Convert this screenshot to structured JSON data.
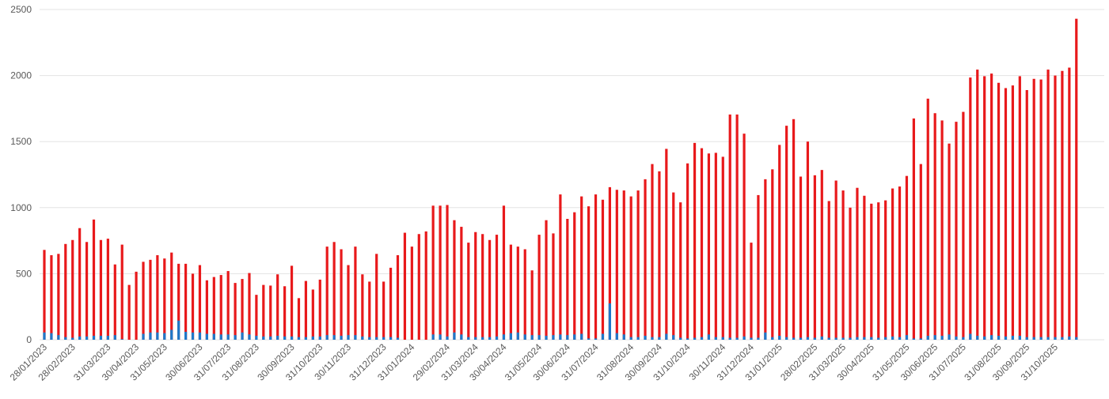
{
  "chart_data": {
    "type": "bar",
    "overlap": true,
    "categories": [
      "28/01/2023",
      null,
      null,
      null,
      "28/02/2023",
      null,
      null,
      null,
      null,
      "31/03/2023",
      null,
      null,
      null,
      "30/04/2023",
      null,
      null,
      null,
      "31/05/2023",
      null,
      null,
      null,
      null,
      "30/06/2023",
      null,
      null,
      null,
      "31/07/2023",
      null,
      null,
      null,
      "31/08/2023",
      null,
      null,
      null,
      null,
      "30/09/2023",
      null,
      null,
      null,
      "31/10/2023",
      null,
      null,
      null,
      "30/11/2023",
      null,
      null,
      null,
      null,
      "31/12/2023",
      null,
      null,
      null,
      "31/01/2024",
      null,
      null,
      null,
      null,
      "29/02/2024",
      null,
      null,
      null,
      "31/03/2024",
      null,
      null,
      null,
      "30/04/2024",
      null,
      null,
      null,
      null,
      "31/05/2024",
      null,
      null,
      null,
      "30/06/2024",
      null,
      null,
      null,
      "31/07/2024",
      null,
      null,
      null,
      null,
      "31/08/2024",
      null,
      null,
      null,
      "30/09/2024",
      null,
      null,
      null,
      "31/10/2024",
      null,
      null,
      null,
      null,
      "30/11/2024",
      null,
      null,
      null,
      "31/12/2024",
      null,
      null,
      null,
      "31/01/2025",
      null,
      null,
      null,
      null,
      "28/02/2025",
      null,
      null,
      null,
      "31/03/2025",
      null,
      null,
      null,
      "30/04/2025",
      null,
      null,
      null,
      null,
      "31/05/2025",
      null,
      null,
      null,
      "30/06/2025",
      null,
      null,
      null,
      "31/07/2025",
      null,
      null,
      null,
      null,
      "31/08/2025",
      null,
      null,
      null,
      "30/09/2025",
      null,
      null,
      null,
      "31/10/2025",
      null,
      null,
      null
    ],
    "series": [
      {
        "color": "#e8191b",
        "values": [
          680,
          640,
          650,
          725,
          755,
          845,
          740,
          910,
          755,
          765,
          570,
          720,
          415,
          515,
          590,
          605,
          640,
          615,
          660,
          575,
          575,
          500,
          565,
          450,
          475,
          490,
          520,
          430,
          460,
          505,
          340,
          415,
          410,
          495,
          405,
          560,
          315,
          445,
          380,
          455,
          705,
          740,
          685,
          565,
          705,
          495,
          440,
          650,
          440,
          545,
          640,
          810,
          705,
          800,
          820,
          1015,
          1015,
          1020,
          905,
          855,
          735,
          815,
          800,
          755,
          795,
          1015,
          720,
          705,
          685,
          525,
          795,
          905,
          805,
          1100,
          915,
          965,
          1085,
          1010,
          1100,
          1060,
          1155,
          1135,
          1130,
          1085,
          1130,
          1215,
          1330,
          1275,
          1445,
          1115,
          1040,
          1335,
          1490,
          1450,
          1410,
          1415,
          1385,
          1705,
          1705,
          1560,
          735,
          1095,
          1215,
          1290,
          1475,
          1620,
          1670,
          1235,
          1500,
          1245,
          1285,
          1050,
          1205,
          1130,
          1000,
          1150,
          1090,
          1030,
          1040,
          1055,
          1145,
          1160,
          1240,
          1675,
          1330,
          1825,
          1715,
          1660,
          1485,
          1650,
          1725,
          1985,
          2045,
          1995,
          2015,
          1945,
          1905,
          1925,
          1995,
          1890,
          1975,
          1970,
          2045,
          2000,
          2035,
          2060,
          2430
        ]
      },
      {
        "color": "#1f78c8",
        "values": [
          55,
          50,
          35,
          20,
          15,
          25,
          25,
          30,
          30,
          30,
          35,
          5,
          0,
          0,
          45,
          55,
          55,
          50,
          75,
          145,
          60,
          55,
          55,
          45,
          45,
          40,
          40,
          35,
          55,
          40,
          30,
          25,
          25,
          30,
          25,
          25,
          20,
          20,
          25,
          25,
          35,
          35,
          30,
          35,
          35,
          25,
          20,
          20,
          20,
          20,
          15,
          0,
          0,
          0,
          0,
          40,
          40,
          25,
          55,
          40,
          20,
          20,
          20,
          20,
          25,
          40,
          50,
          55,
          40,
          35,
          35,
          30,
          35,
          40,
          35,
          40,
          45,
          10,
          10,
          45,
          275,
          50,
          40,
          20,
          20,
          30,
          20,
          20,
          45,
          35,
          15,
          10,
          15,
          20,
          40,
          20,
          20,
          15,
          15,
          25,
          15,
          15,
          55,
          20,
          30,
          20,
          15,
          15,
          20,
          15,
          25,
          15,
          15,
          15,
          15,
          20,
          20,
          20,
          15,
          20,
          25,
          20,
          35,
          10,
          10,
          30,
          35,
          30,
          40,
          25,
          20,
          45,
          30,
          25,
          35,
          30,
          25,
          30,
          30,
          20,
          20,
          20,
          20,
          20,
          20,
          25,
          20
        ]
      }
    ],
    "ylim": [
      0,
      2500
    ],
    "yticks": [
      0,
      500,
      1000,
      1500,
      2000,
      2500
    ],
    "grid": true
  }
}
